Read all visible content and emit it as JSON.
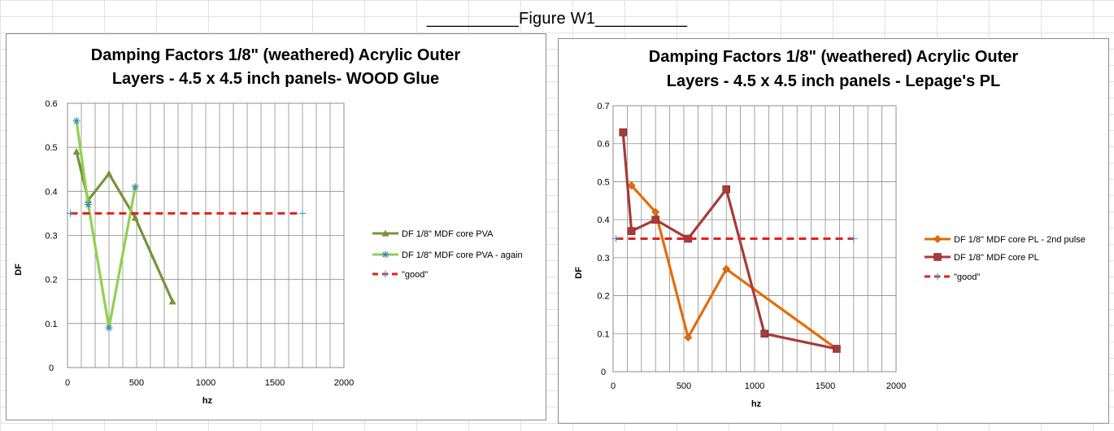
{
  "figure_title": "__________Figure W1__________",
  "colors": {
    "sheet_grid": "#dfe3e8",
    "plot_grid": "#8c8c8c",
    "pva": "#77933c",
    "pva_again": "#92d050",
    "good": "#e02020",
    "pl_2nd": "#e46c0a",
    "pl": "#a83a3a"
  },
  "chart_data": [
    {
      "type": "line",
      "title": [
        "Damping Factors 1/8\" (weathered) Acrylic Outer",
        "Layers - 4.5 x 4.5 inch panels- WOOD Glue"
      ],
      "xlabel": "hz",
      "ylabel": "DF",
      "xlim": [
        0,
        2000
      ],
      "ylim": [
        0,
        0.6
      ],
      "xticks": [
        0,
        500,
        1000,
        1500,
        2000
      ],
      "yticks": [
        0,
        0.1,
        0.2,
        0.3,
        0.4,
        0.5,
        0.6
      ],
      "xgrid_step": 100,
      "legend_position": "right",
      "series": [
        {
          "name": "DF 1/8\" MDF core PVA",
          "color": "#77933c",
          "marker": "triangle",
          "dash": false,
          "x": [
            65,
            150,
            300,
            490,
            760
          ],
          "y": [
            0.49,
            0.38,
            0.44,
            0.34,
            0.15
          ]
        },
        {
          "name": "DF 1/8\" MDF core PVA - again",
          "color": "#92d050",
          "marker": "star",
          "dash": false,
          "x": [
            65,
            150,
            300,
            490
          ],
          "y": [
            0.56,
            0.37,
            0.09,
            0.41
          ]
        },
        {
          "name": "\"good\"",
          "color": "#e02020",
          "marker": "plus",
          "dash": true,
          "x": [
            20,
            1700
          ],
          "y": [
            0.35,
            0.35
          ]
        }
      ]
    },
    {
      "type": "line",
      "title": [
        "Damping Factors 1/8\"  (weathered) Acrylic Outer",
        "Layers - 4.5 x 4.5 inch panels - Lepage's PL"
      ],
      "xlabel": "hz",
      "ylabel": "DF",
      "xlim": [
        0,
        2000
      ],
      "ylim": [
        0,
        0.7
      ],
      "xticks": [
        0,
        500,
        1000,
        1500,
        2000
      ],
      "yticks": [
        0,
        0.1,
        0.2,
        0.3,
        0.4,
        0.5,
        0.6,
        0.7
      ],
      "xgrid_step": 100,
      "legend_position": "right",
      "series": [
        {
          "name": "DF 1/8\" MDF core PL - 2nd pulse",
          "color": "#e46c0a",
          "marker": "diamond",
          "dash": false,
          "x": [
            130,
            300,
            530,
            800,
            1580
          ],
          "y": [
            0.49,
            0.42,
            0.09,
            0.27,
            0.06
          ]
        },
        {
          "name": "DF 1/8\" MDF core PL",
          "color": "#a83a3a",
          "marker": "square",
          "dash": false,
          "x": [
            70,
            130,
            300,
            530,
            800,
            1070,
            1580
          ],
          "y": [
            0.63,
            0.37,
            0.4,
            0.35,
            0.48,
            0.1,
            0.06
          ]
        },
        {
          "name": "\"good\"",
          "color": "#e02020",
          "marker": "plus",
          "dash": true,
          "x": [
            20,
            1700
          ],
          "y": [
            0.35,
            0.35
          ]
        }
      ]
    }
  ]
}
